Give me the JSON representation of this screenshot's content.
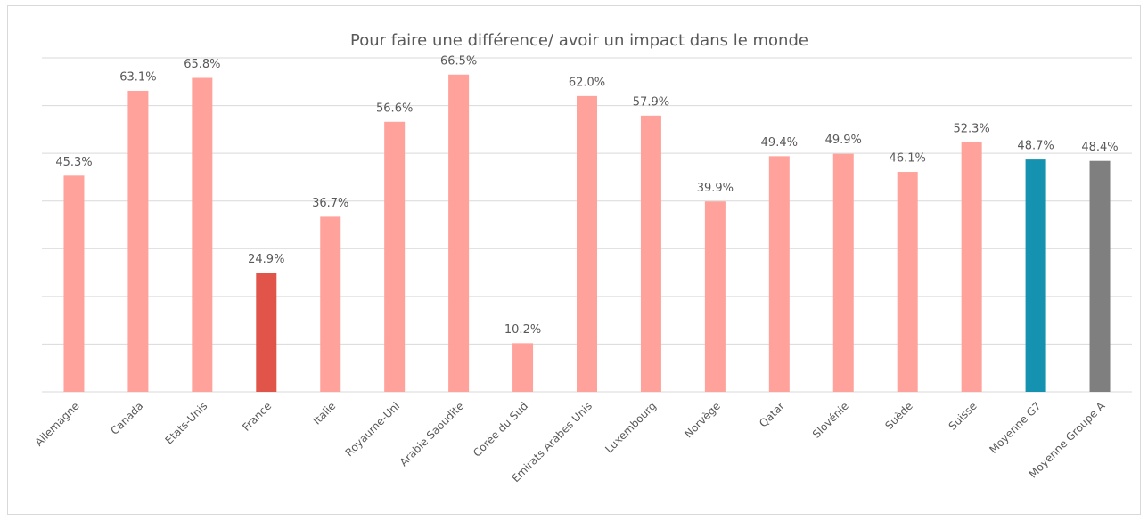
{
  "chart_data": {
    "type": "bar",
    "title": "Pour faire une différence/ avoir un impact dans le monde",
    "categories": [
      "Allemagne",
      "Canada",
      "Etats-Unis",
      "France",
      "Italie",
      "Royaume-Uni",
      "Arabie Saoudite",
      "Corée du Sud",
      "Emirats Arabes Unis",
      "Luxembourg",
      "Norvège",
      "Qatar",
      "Slovénie",
      "Suède",
      "Suisse",
      "Moyenne G7",
      "Moyenne Groupe A"
    ],
    "values": [
      45.3,
      63.1,
      65.8,
      24.9,
      36.7,
      56.6,
      66.5,
      10.2,
      62.0,
      57.9,
      39.9,
      49.4,
      49.9,
      46.1,
      52.3,
      48.7,
      48.4
    ],
    "value_labels": [
      "45.3%",
      "63.1%",
      "65.8%",
      "24.9%",
      "36.7%",
      "56.6%",
      "66.5%",
      "10.2%",
      "62.0%",
      "57.9%",
      "39.9%",
      "49.4%",
      "49.9%",
      "46.1%",
      "52.3%",
      "48.7%",
      "48.4%"
    ],
    "colors": [
      "#ffa29c",
      "#ffa29c",
      "#ffa29c",
      "#e0544a",
      "#ffa29c",
      "#ffa29c",
      "#ffa29c",
      "#ffa29c",
      "#ffa29c",
      "#ffa29c",
      "#ffa29c",
      "#ffa29c",
      "#ffa29c",
      "#ffa29c",
      "#ffa29c",
      "#1592b0",
      "#7f7f7f"
    ],
    "ylim": [
      0,
      70
    ],
    "yticks": [
      0,
      10,
      20,
      30,
      40,
      50,
      60,
      70
    ],
    "grid": true
  }
}
